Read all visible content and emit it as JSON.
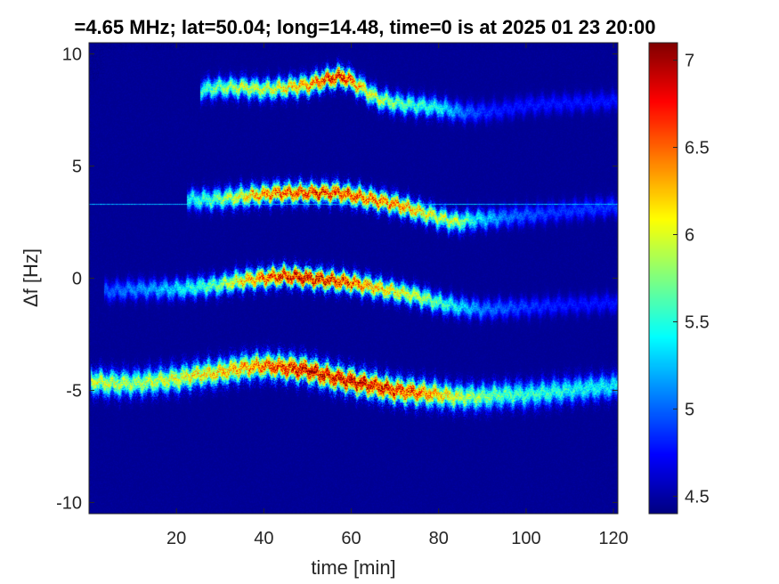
{
  "chart_data": {
    "type": "heatmap",
    "title": "=4.65 MHz;  lat=50.04; long=14.48, time=0 is at 2025 01 23 20:00",
    "xlabel": "time [min]",
    "ylabel": "Δf [Hz]",
    "xlim": [
      0,
      121
    ],
    "ylim": [
      -10.5,
      10.5
    ],
    "x_ticks": [
      20,
      40,
      60,
      80,
      100,
      120
    ],
    "x_tick_labels": [
      "20",
      "40",
      "60",
      "80",
      "100",
      "120"
    ],
    "y_ticks": [
      10,
      5,
      0,
      -5,
      -10
    ],
    "y_tick_labels": [
      "10",
      "5",
      "0",
      "-5",
      "-10"
    ],
    "colorbar": {
      "colormap": "jet",
      "range": [
        4.4,
        7.1
      ],
      "ticks": [
        7,
        6.5,
        6,
        5.5,
        5,
        4.5
      ],
      "tick_labels": [
        "7",
        "6.5",
        "6",
        "5.5",
        "5",
        "4.5"
      ]
    },
    "background_level": 4.45,
    "reference_line": {
      "df": 3.3,
      "level": 5.2
    },
    "series": [
      {
        "x": [
          26,
          30,
          35,
          40,
          45,
          50,
          55,
          58,
          60,
          63,
          66,
          70,
          75,
          80,
          85,
          90,
          95,
          100,
          110,
          121
        ],
        "df": [
          8.4,
          8.5,
          8.5,
          8.4,
          8.5,
          8.6,
          8.9,
          9.0,
          8.8,
          8.4,
          8.0,
          7.8,
          7.7,
          7.6,
          7.4,
          7.4,
          7.5,
          7.7,
          7.8,
          7.9
        ],
        "peak": [
          5.6,
          5.8,
          6.0,
          6.0,
          6.2,
          6.4,
          6.8,
          6.9,
          6.6,
          6.2,
          6.0,
          5.8,
          5.6,
          5.5,
          5.1,
          4.9,
          4.8,
          4.8,
          4.8,
          4.8
        ]
      },
      {
        "x": [
          23,
          28,
          33,
          38,
          43,
          48,
          53,
          57,
          60,
          65,
          70,
          75,
          80,
          84,
          88,
          95,
          105,
          115,
          121
        ],
        "df": [
          3.5,
          3.5,
          3.6,
          3.7,
          3.8,
          3.8,
          3.8,
          3.8,
          3.7,
          3.5,
          3.3,
          3.0,
          2.7,
          2.5,
          2.6,
          2.7,
          2.9,
          3.1,
          3.2
        ],
        "peak": [
          5.5,
          5.7,
          6.0,
          6.4,
          6.6,
          6.7,
          6.8,
          6.7,
          6.7,
          6.6,
          6.5,
          6.3,
          6.0,
          6.0,
          5.5,
          5.1,
          4.9,
          4.9,
          4.9
        ]
      },
      {
        "x": [
          4,
          10,
          15,
          20,
          25,
          30,
          35,
          40,
          45,
          50,
          55,
          60,
          65,
          70,
          75,
          80,
          85,
          90,
          100,
          110,
          121
        ],
        "df": [
          -0.6,
          -0.5,
          -0.5,
          -0.5,
          -0.4,
          -0.3,
          -0.1,
          0.0,
          0.1,
          0.0,
          -0.1,
          -0.2,
          -0.4,
          -0.6,
          -0.8,
          -1.1,
          -1.3,
          -1.4,
          -1.3,
          -1.2,
          -1.1
        ],
        "peak": [
          5.0,
          5.1,
          5.2,
          5.4,
          5.6,
          5.8,
          6.3,
          6.6,
          6.9,
          7.0,
          6.9,
          6.7,
          6.4,
          6.2,
          6.0,
          5.7,
          5.4,
          5.1,
          4.9,
          4.8,
          4.8
        ]
      },
      {
        "x": [
          1,
          5,
          10,
          15,
          20,
          25,
          30,
          35,
          40,
          45,
          50,
          55,
          60,
          65,
          70,
          75,
          80,
          85,
          90,
          95,
          100,
          105,
          110,
          115,
          121
        ],
        "df": [
          -4.6,
          -4.7,
          -4.7,
          -4.6,
          -4.5,
          -4.3,
          -4.2,
          -4.0,
          -3.9,
          -4.0,
          -4.1,
          -4.4,
          -4.6,
          -4.8,
          -5.0,
          -5.1,
          -5.2,
          -5.3,
          -5.3,
          -5.2,
          -5.2,
          -5.1,
          -5.0,
          -4.9,
          -4.8
        ],
        "peak": [
          6.0,
          6.0,
          5.9,
          6.0,
          6.1,
          6.2,
          6.3,
          6.4,
          6.6,
          6.8,
          7.0,
          6.9,
          7.0,
          6.9,
          6.8,
          6.6,
          6.3,
          6.0,
          5.8,
          5.7,
          5.6,
          5.6,
          5.5,
          5.5,
          5.4
        ],
        "width": 0.35
      }
    ]
  }
}
